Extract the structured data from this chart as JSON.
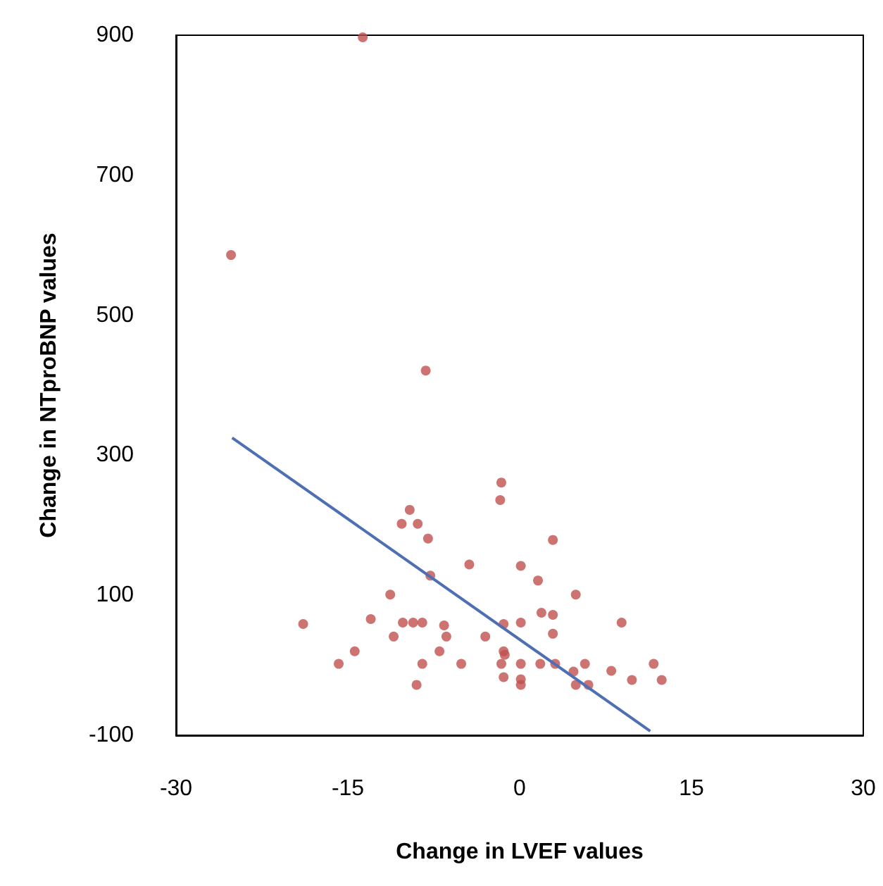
{
  "chart_data": {
    "type": "scatter",
    "xlabel": "Change in LVEF values",
    "ylabel": "Change in NTproBNP values",
    "xlim": [
      -30,
      30
    ],
    "ylim": [
      -100,
      900
    ],
    "xticks": [
      -30,
      -15,
      0,
      15,
      30
    ],
    "yticks": [
      -100,
      100,
      300,
      500,
      700,
      900
    ],
    "grid": false,
    "marker": "circle",
    "series": [
      {
        "color": "#c0504d",
        "x": [
          -13.7,
          -25.2,
          -8.2,
          -1.6,
          -1.7,
          -9.6,
          -10.3,
          -8.9,
          -8.0,
          2.9,
          -4.4,
          0.1,
          -7.8,
          1.6,
          -11.3,
          4.9,
          -18.9,
          -13.0,
          -10.2,
          -9.3,
          -8.5,
          -6.6,
          -6.4,
          -11.0,
          -1.4,
          0.1,
          1.9,
          2.9,
          2.9,
          8.9,
          -3.0,
          -14.4,
          -7.0,
          -1.4,
          -1.3,
          -15.8,
          -8.5,
          -5.1,
          -1.6,
          0.1,
          1.8,
          3.1,
          4.7,
          5.7,
          8.0,
          11.7,
          9.8,
          12.4,
          -9.0,
          -1.4,
          0.1,
          0.1,
          4.9,
          6.0
        ],
        "values": [
          897,
          586,
          421,
          261,
          236,
          222,
          202,
          202,
          181,
          179,
          144,
          142,
          128,
          121,
          101,
          101,
          59,
          66,
          61,
          61,
          61,
          57,
          41,
          41,
          59,
          61,
          75,
          72,
          45,
          61,
          41,
          20,
          20,
          20,
          15,
          2,
          2,
          2,
          2,
          2,
          2,
          2,
          -9,
          2,
          -8,
          2,
          -21,
          -21,
          -28,
          -17,
          -20,
          -28,
          -28,
          -28
        ]
      },
      {
        "type": "line",
        "color": "#4f6fb5",
        "line_style": "solid",
        "marker": "none",
        "x": [
          -25.1,
          11.4
        ],
        "values": [
          325,
          -94
        ]
      }
    ]
  }
}
